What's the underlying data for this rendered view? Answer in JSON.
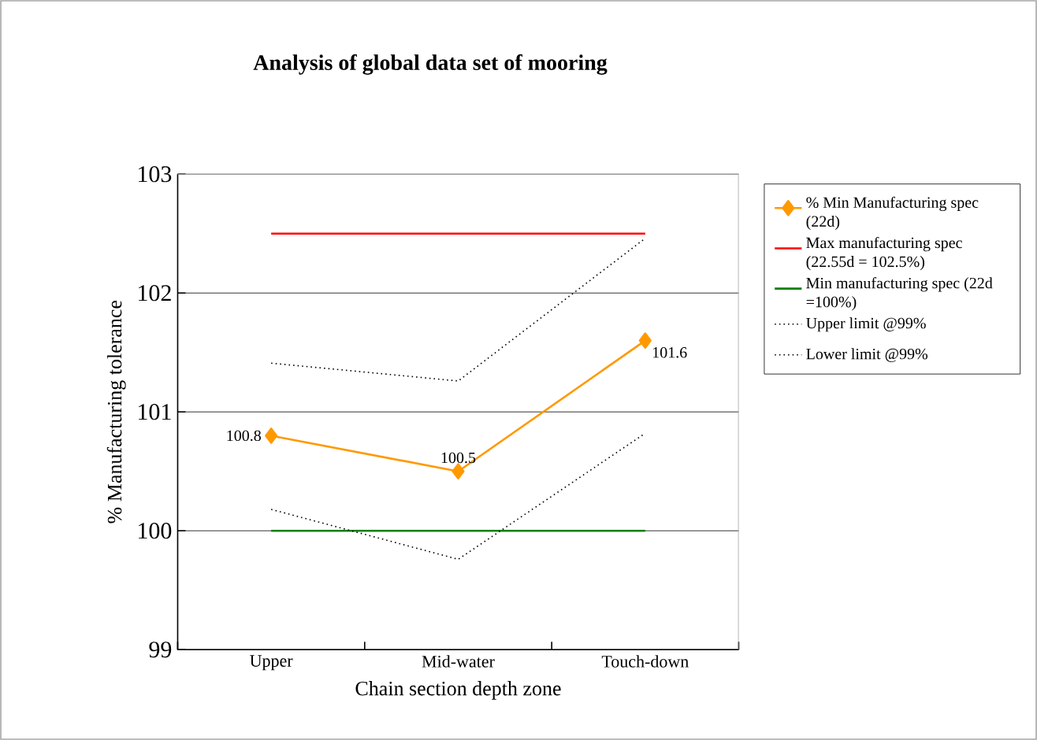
{
  "chart_data": {
    "type": "line",
    "title": "Analysis of global data set of mooring",
    "xlabel": "Chain section depth zone",
    "ylabel": "% Manufacturing tolerance",
    "categories": [
      "Upper",
      "Mid-water",
      "Touch-down"
    ],
    "ylim": [
      99,
      103
    ],
    "yticks": [
      99,
      100,
      101,
      102,
      103
    ],
    "grid": "y",
    "legend": "right",
    "series": [
      {
        "name": "% Min Manufacturing spec (22d)",
        "color": "#ff9900",
        "values": [
          100.8,
          100.5,
          101.6
        ],
        "marker": "diamond",
        "line_style": "solid",
        "value_labels": [
          "100.8",
          "100.5",
          "101.6"
        ]
      },
      {
        "name": "Max manufacturing spec (22.55d = 102.5%)",
        "color": "#ff0000",
        "values": [
          102.5,
          102.5,
          102.5
        ],
        "marker": "none",
        "line_style": "solid"
      },
      {
        "name": "Min manufacturing spec (22d =100%)",
        "color": "#008000",
        "values": [
          100,
          100,
          100
        ],
        "marker": "none",
        "line_style": "solid"
      },
      {
        "name": "Upper limit @99%",
        "color": "#000000",
        "values": [
          101.41,
          101.26,
          102.46
        ],
        "marker": "none",
        "line_style": "dotted"
      },
      {
        "name": "Lower limit @99%",
        "color": "#000000",
        "values": [
          100.18,
          99.76,
          100.82
        ],
        "marker": "none",
        "line_style": "dotted"
      }
    ]
  }
}
